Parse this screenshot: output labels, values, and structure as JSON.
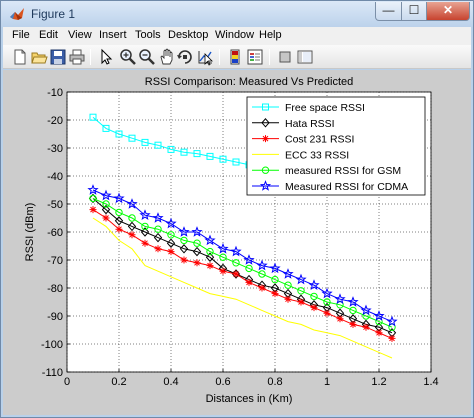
{
  "window": {
    "title": "Figure 1",
    "minimize_glyph": "—",
    "maximize_glyph": "☐",
    "close_glyph": "✕",
    "accent": "#b9d1ea"
  },
  "menu": [
    "File",
    "Edit",
    "View",
    "Insert",
    "Tools",
    "Desktop",
    "Window",
    "Help"
  ],
  "toolbar": {
    "icons": [
      "new-figure-icon",
      "open-file-icon",
      "save-icon",
      "print-icon",
      "edit-plot-icon",
      "zoom-in-icon",
      "zoom-out-icon",
      "pan-icon",
      "rotate-3d-icon",
      "data-cursor-icon",
      "colorbar-icon",
      "legend-icon",
      "hide-plot-tools-icon",
      "show-plot-tools-icon"
    ]
  },
  "chart_data": {
    "type": "line",
    "title": "RSSI Comparison: Measured Vs Predicted",
    "xlabel": "Distances in (Km)",
    "ylabel": "RSSI (dBm)",
    "xlim": [
      0,
      1.4
    ],
    "ylim": [
      -110,
      -10
    ],
    "xticks": [
      "0",
      "0.2",
      "0.4",
      "0.6",
      "0.8",
      "1",
      "1.2",
      "1.4"
    ],
    "yticks": [
      "-10",
      "-20",
      "-30",
      "-40",
      "-50",
      "-60",
      "-70",
      "-80",
      "-90",
      "-100",
      "-110"
    ],
    "grid": true,
    "legend_position": "top-right",
    "x": [
      0.1,
      0.15,
      0.2,
      0.25,
      0.3,
      0.35,
      0.4,
      0.45,
      0.5,
      0.55,
      0.6,
      0.65,
      0.7,
      0.75,
      0.8,
      0.85,
      0.9,
      0.95,
      1.0,
      1.05,
      1.1,
      1.15,
      1.2,
      1.25
    ],
    "series": [
      {
        "name": "Free space RSSI",
        "color": "#00ffff",
        "marker": "square",
        "values": [
          -19,
          -23,
          -25,
          -26.5,
          -28,
          -29,
          -30.5,
          -31.5,
          -32,
          -33,
          -34,
          -35,
          -36,
          -37,
          -38,
          -38.5,
          -39,
          -40,
          -40.5,
          -41,
          -41.5,
          -42,
          -43,
          -43.5
        ]
      },
      {
        "name": "Hata RSSI",
        "color": "#000000",
        "marker": "diamond",
        "values": [
          -48,
          -52,
          -56,
          -58,
          -60,
          -62,
          -64,
          -66,
          -67,
          -69,
          -73,
          -75,
          -77,
          -79,
          -80,
          -82,
          -84,
          -86,
          -87,
          -89,
          -91,
          -93,
          -94,
          -96
        ]
      },
      {
        "name": "Cost 231 RSSI",
        "color": "#ff0000",
        "marker": "star",
        "values": [
          -52,
          -55,
          -59,
          -61,
          -64,
          -66,
          -67,
          -70,
          -71,
          -72,
          -74,
          -75,
          -78,
          -80,
          -82,
          -84,
          -85,
          -87,
          -89,
          -91,
          -93,
          -94,
          -96,
          -98
        ]
      },
      {
        "name": "ECC 33 RSSI",
        "color": "#ffff00",
        "marker": "none",
        "values": [
          -55,
          -58,
          -63,
          -66,
          -72,
          -74,
          -76,
          -78,
          -80,
          -82,
          -83,
          -84,
          -86,
          -88,
          -90,
          -92,
          -93,
          -95,
          -96,
          -97,
          -99,
          -101,
          -103,
          -105
        ]
      },
      {
        "name": "measured RSSI for GSM",
        "color": "#00ff00",
        "marker": "circle",
        "values": [
          -48,
          -50,
          -53,
          -55,
          -58,
          -59,
          -61,
          -63,
          -64,
          -67,
          -69,
          -71,
          -73,
          -75,
          -77,
          -79,
          -81,
          -83,
          -85,
          -86,
          -88,
          -90,
          -92,
          -94
        ]
      },
      {
        "name": "Measured RSSI for CDMA",
        "color": "#0000ff",
        "marker": "pentagram",
        "values": [
          -45,
          -47,
          -48,
          -50,
          -54,
          -55,
          -57,
          -60,
          -60,
          -63,
          -66,
          -67,
          -70,
          -72,
          -73,
          -75,
          -77,
          -79,
          -82,
          -84,
          -85,
          -88,
          -90,
          -92
        ]
      }
    ]
  }
}
